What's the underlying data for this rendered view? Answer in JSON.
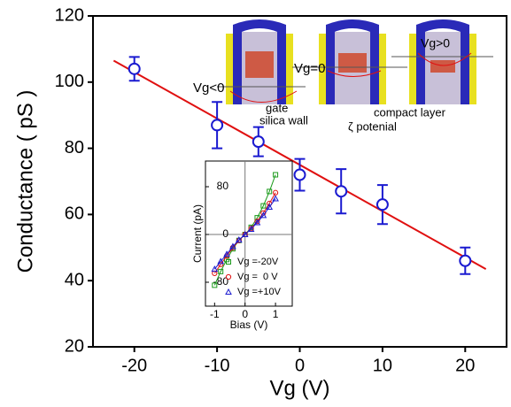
{
  "chart_data": [
    {
      "type": "scatter",
      "x_label": "Vg (V)",
      "y_label": "Conductance ( pS )",
      "x": [
        -20,
        -10,
        -5,
        0,
        5,
        10,
        20
      ],
      "values": [
        104,
        87,
        82,
        72,
        67,
        63,
        46
      ],
      "errors": [
        3.6,
        7,
        4.4,
        4.8,
        6.7,
        5.9,
        4
      ],
      "color": "#1a1ad0",
      "fit": {
        "x": [
          -22.5,
          22.5
        ],
        "values": [
          106.5,
          43.5
        ],
        "color": "#e01010"
      },
      "xlim": [
        -25,
        25
      ],
      "ylim": [
        20,
        120
      ],
      "xticks": [
        -20,
        -10,
        0,
        10,
        20
      ],
      "yticks": [
        20,
        40,
        60,
        80,
        100,
        120
      ],
      "annotations": [
        "Vg<0",
        "Vg=0",
        "Vg>0",
        "gate",
        "silica wall",
        "compact layer",
        "ζ potenial"
      ]
    },
    {
      "type": "line",
      "x_label": "Bias (V)",
      "y_label": "Current (pA)",
      "x": [
        -1,
        -0.8,
        -0.6,
        -0.4,
        -0.2,
        0,
        0.2,
        0.4,
        0.6,
        0.8,
        1
      ],
      "series": [
        {
          "name": "Vg =-20V",
          "color": "#1a9a1a",
          "marker": "square",
          "values": [
            -85,
            -62,
            -42,
            -24,
            -10,
            0,
            12,
            28,
            48,
            72,
            100
          ]
        },
        {
          "name": "Vg =  0 V",
          "color": "#e01010",
          "marker": "circle",
          "values": [
            -65,
            -50,
            -36,
            -22,
            -10,
            0,
            10,
            22,
            36,
            52,
            70
          ]
        },
        {
          "name": "Vg =+10V",
          "color": "#1a1ad0",
          "marker": "triangle",
          "values": [
            -58,
            -45,
            -33,
            -20,
            -9,
            0,
            9,
            20,
            32,
            46,
            60
          ]
        }
      ],
      "xlim": [
        -1.3,
        1.55
      ],
      "ylim": [
        -120,
        123
      ],
      "xticks": [
        -1,
        0,
        1
      ],
      "yticks": [
        -80,
        0,
        80
      ],
      "legend": "lower right"
    }
  ]
}
